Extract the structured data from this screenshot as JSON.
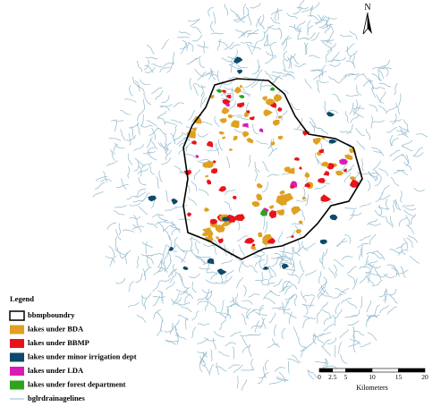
{
  "north_label": "N",
  "legend": {
    "title": "Legend",
    "items": [
      {
        "label": "bbmpboundry",
        "color": "#000000",
        "symbol": "outline"
      },
      {
        "label": "lakes under BDA",
        "color": "#e0a020",
        "symbol": "fill"
      },
      {
        "label": "lakes under BBMP",
        "color": "#e8141c",
        "symbol": "fill"
      },
      {
        "label": "lakes under minor irrigation dept",
        "color": "#0e4a6a",
        "symbol": "fill"
      },
      {
        "label": "lakes under LDA",
        "color": "#d81cb4",
        "symbol": "fill"
      },
      {
        "label": "lakes under forest department",
        "color": "#2ea41c",
        "symbol": "fill"
      },
      {
        "label": "bglrdrainagelines",
        "color": "#8fb8cc",
        "symbol": "line"
      }
    ]
  },
  "scale_bar": {
    "labels": [
      "0",
      "2.5",
      "5",
      "10",
      "15",
      "20"
    ],
    "unit": "Kilometers"
  }
}
